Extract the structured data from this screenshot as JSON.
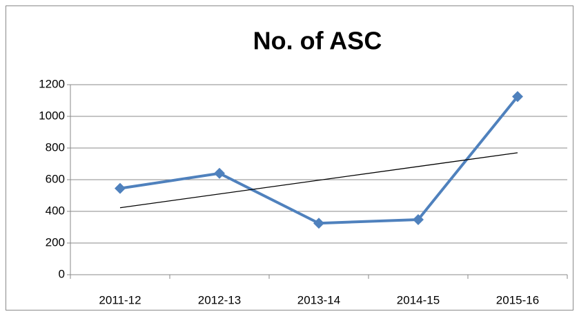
{
  "chart_data": {
    "type": "line",
    "title": "No. of ASC",
    "categories": [
      "2011-12",
      "2012-13",
      "2013-14",
      "2014-15",
      "2015-16"
    ],
    "series": [
      {
        "name": "No. of ASC",
        "color": "#4f81bd",
        "values": [
          545,
          640,
          325,
          348,
          1125
        ]
      }
    ],
    "trendline": "linear",
    "trendline_color": "#000000",
    "ylim": [
      0,
      1200
    ],
    "yticks": [
      0,
      200,
      400,
      600,
      800,
      1000,
      1200
    ],
    "grid": true,
    "legend": false
  }
}
